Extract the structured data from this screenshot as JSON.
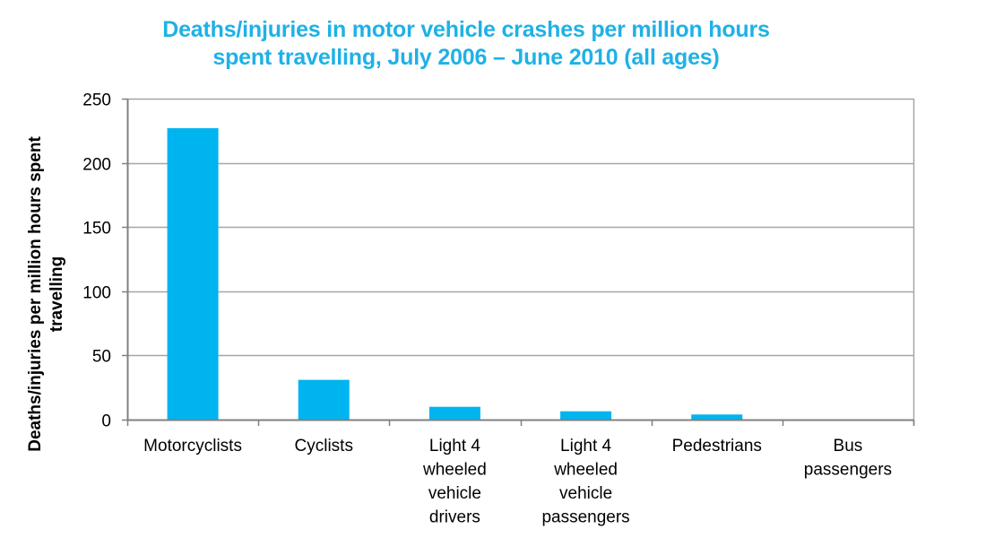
{
  "chart_data": {
    "type": "bar",
    "title": "Deaths/injuries in motor vehicle crashes per million hours spent travelling, July 2006 – June 2010 (all ages)",
    "title_lines": [
      "Deaths/injuries in motor vehicle crashes per million hours",
      "spent travelling, July 2006 – June 2010 (all ages)"
    ],
    "xlabel": "",
    "ylabel": "Deaths/injuries per million hours spent travelling",
    "ylabel_lines": [
      "Deaths/injuries per million hours spent",
      "travelling"
    ],
    "categories": [
      "Motorcyclists",
      "Cyclists",
      "Light 4 wheeled vehicle drivers",
      "Light 4 wheeled vehicle passengers",
      "Pedestrians",
      "Bus passengers"
    ],
    "category_label_lines": [
      [
        "Motorcyclists"
      ],
      [
        "Cyclists"
      ],
      [
        "Light 4",
        "wheeled",
        "vehicle",
        "drivers"
      ],
      [
        "Light 4",
        "wheeled",
        "vehicle",
        "passengers"
      ],
      [
        "Pedestrians"
      ],
      [
        "Bus",
        "passengers"
      ]
    ],
    "values": [
      227,
      31,
      10,
      6.5,
      4,
      0.2
    ],
    "ylim": [
      0,
      250
    ],
    "yticks": [
      0,
      50,
      100,
      150,
      200,
      250
    ],
    "grid": true,
    "legend": "none",
    "colors": {
      "bar": "#00b4f0",
      "title": "#1fb1e6",
      "grid": "#a6a6a6",
      "axis": "#808080"
    }
  }
}
